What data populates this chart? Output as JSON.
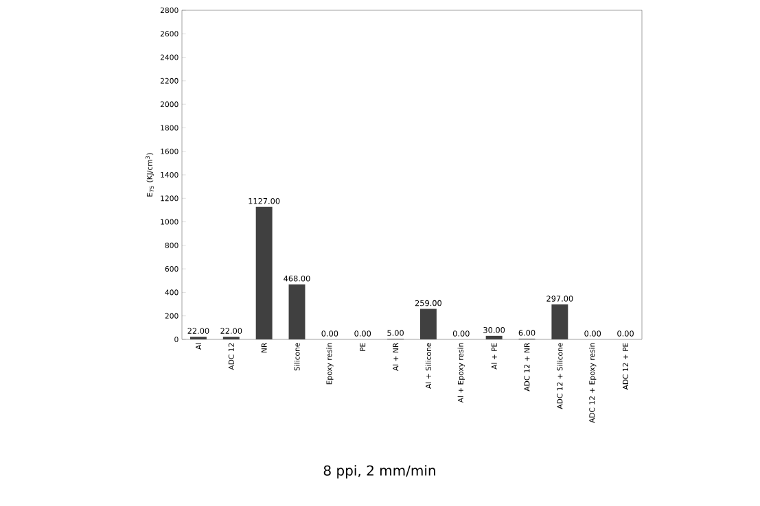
{
  "chart_data": {
    "type": "bar",
    "ylabel": "E$_{75}$ (KJ/cm$^{3}$)",
    "categories": [
      "Al",
      "ADC 12",
      "NR",
      "Silicone",
      "Epoxy resin",
      "PE",
      "Al + NR",
      "Al + Silicone",
      "Al + Epoxy resin",
      "Al + PE",
      "ADC 12 + NR",
      "ADC 12 + Silicone",
      "ADC 12 + Epoxy resin",
      "ADC 12 + PE"
    ],
    "values": [
      22,
      22,
      1127,
      468,
      0,
      0,
      5,
      259,
      0,
      30,
      6,
      297,
      0,
      0
    ],
    "value_labels": [
      "22.00",
      "22.00",
      "1127.00",
      "468.00",
      "0.00",
      "0.00",
      "5.00",
      "259.00",
      "0.00",
      "30.00",
      "6.00",
      "297.00",
      "0.00",
      "0.00"
    ],
    "color": "#404040",
    "ylim": [
      0,
      2800
    ],
    "yticks": [
      0,
      200,
      400,
      600,
      800,
      1000,
      1200,
      1400,
      1600,
      1800,
      2000,
      2200,
      2400,
      2600,
      2800
    ],
    "grid": false,
    "annotations": [
      "8 ppi, 2 mm/min"
    ]
  }
}
